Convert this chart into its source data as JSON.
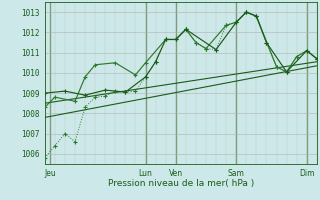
{
  "title": "",
  "xlabel": "Pression niveau de la mer( hPa )",
  "bg_color": "#cce8e8",
  "grid_color_major": "#aacccc",
  "grid_color_minor": "#bbdddd",
  "line_dark": "#1a5c1a",
  "line_mid": "#2d7a2d",
  "ylim": [
    1005.5,
    1013.5
  ],
  "xlim": [
    0,
    27
  ],
  "xtick_labels": [
    "Jeu",
    "Lun",
    "Ven",
    "Sam",
    "Dim"
  ],
  "xtick_positions": [
    0.5,
    10,
    13,
    19,
    26
  ],
  "ytick_values": [
    1006,
    1007,
    1008,
    1009,
    1010,
    1011,
    1012,
    1013
  ],
  "vline_positions": [
    0.5,
    10,
    13,
    19,
    26
  ],
  "series_dot_x": [
    0,
    1,
    2,
    3,
    4,
    5,
    6,
    7,
    8,
    9,
    10,
    11,
    12,
    13,
    14,
    15,
    16,
    17,
    18,
    19,
    20,
    21,
    22,
    23,
    24,
    25,
    26,
    27
  ],
  "series_dot_y": [
    1005.8,
    1006.4,
    1007.0,
    1006.6,
    1008.3,
    1008.8,
    1008.85,
    1009.1,
    1009.05,
    1009.1,
    1009.8,
    1010.55,
    1011.65,
    1011.65,
    1012.15,
    1011.5,
    1011.2,
    1011.15,
    1012.35,
    1012.5,
    1013.0,
    1012.8,
    1011.5,
    1010.3,
    1010.05,
    1010.8,
    1011.1,
    1010.7
  ],
  "series_solid1_x": [
    0,
    2,
    4,
    6,
    8,
    10,
    11,
    12,
    13,
    14,
    17,
    19,
    20,
    21,
    22,
    24,
    26,
    27
  ],
  "series_solid1_y": [
    1009.0,
    1009.1,
    1008.9,
    1009.15,
    1009.05,
    1009.8,
    1010.55,
    1011.65,
    1011.65,
    1012.15,
    1011.15,
    1012.5,
    1013.0,
    1012.8,
    1011.5,
    1010.05,
    1011.1,
    1010.7
  ],
  "series_solid2_x": [
    0,
    1,
    3,
    4,
    5,
    7,
    9,
    10,
    12,
    13,
    14,
    15,
    16,
    18,
    19,
    20,
    21,
    23,
    24,
    25,
    26,
    27
  ],
  "series_solid2_y": [
    1008.3,
    1008.8,
    1008.6,
    1009.8,
    1010.4,
    1010.5,
    1009.9,
    1010.5,
    1011.65,
    1011.65,
    1012.15,
    1011.5,
    1011.2,
    1012.35,
    1012.5,
    1013.0,
    1012.8,
    1010.3,
    1010.05,
    1010.8,
    1011.1,
    1010.7
  ],
  "trend1_x": [
    0,
    27
  ],
  "trend1_y": [
    1007.8,
    1010.35
  ],
  "trend2_x": [
    0,
    27
  ],
  "trend2_y": [
    1008.5,
    1010.55
  ]
}
